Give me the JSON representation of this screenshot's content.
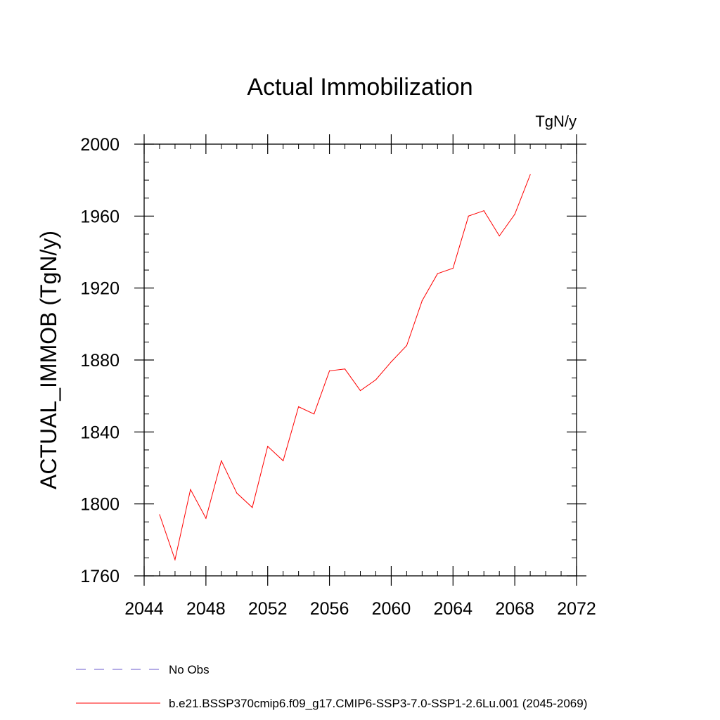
{
  "chart_data": {
    "type": "line",
    "title": "Actual Immobilization",
    "units": "TgN/y",
    "xlabel": "",
    "ylabel": "ACTUAL_IMMOB  (TgN/y)",
    "xlim": [
      2044,
      2072
    ],
    "ylim": [
      1760,
      2000
    ],
    "x_ticks": [
      2044,
      2048,
      2052,
      2056,
      2060,
      2064,
      2068,
      2072
    ],
    "y_ticks": [
      1760,
      1800,
      1840,
      1880,
      1920,
      1960,
      2000
    ],
    "x_minor_step": 1,
    "y_minor_step": 10,
    "grid": false,
    "series": [
      {
        "name": "b.e21.BSSP370cmip6.f09_g17.CMIP6-SSP3-7.0-SSP1-2.6Lu.001 (2045-2069)",
        "color": "#ff0000",
        "style": "solid",
        "x": [
          2045,
          2046,
          2047,
          2048,
          2049,
          2050,
          2051,
          2052,
          2053,
          2054,
          2055,
          2056,
          2057,
          2058,
          2059,
          2060,
          2061,
          2062,
          2063,
          2064,
          2065,
          2066,
          2067,
          2068,
          2069
        ],
        "values": [
          1794,
          1769,
          1808,
          1792,
          1824,
          1806,
          1798,
          1832,
          1824,
          1854,
          1850,
          1874,
          1875,
          1863,
          1869,
          1879,
          1888,
          1913,
          1928,
          1931,
          1960,
          1963,
          1949,
          1961,
          1983
        ]
      }
    ],
    "legend": [
      {
        "label": "No Obs",
        "color": "#6a5acd",
        "style": "dashed"
      },
      {
        "label": "b.e21.BSSP370cmip6.f09_g17.CMIP6-SSP3-7.0-SSP1-2.6Lu.001 (2045-2069)",
        "color": "#ff0000",
        "style": "solid"
      }
    ],
    "legend_position": "bottom-left"
  }
}
